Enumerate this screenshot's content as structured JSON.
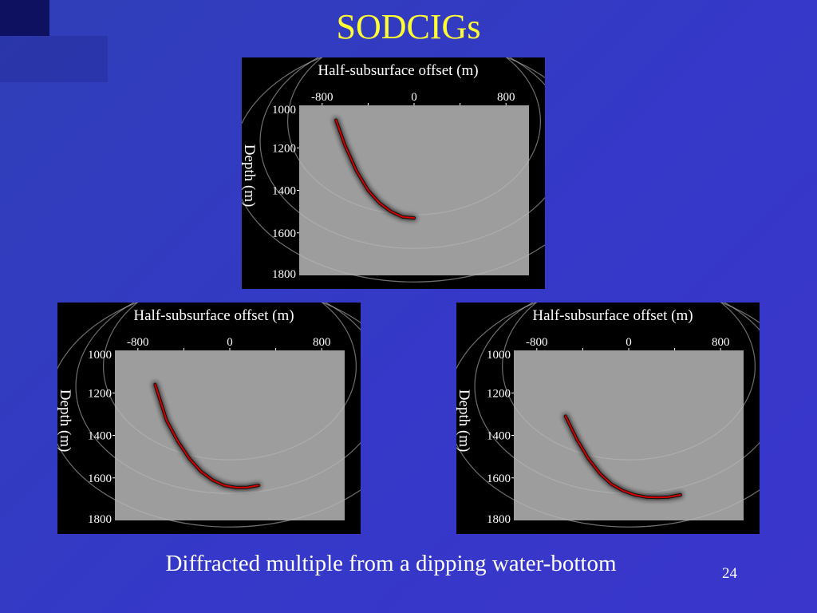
{
  "slide": {
    "title": "SODCIGs",
    "caption": "Diffracted multiple from a dipping water-bottom",
    "page_number": "24"
  },
  "colors": {
    "title": "#ffff33",
    "curve": "#d40000",
    "panel": "#000000"
  },
  "chart_data": [
    {
      "type": "line",
      "title": "",
      "xlabel": "Half-subsurface offset (m)",
      "ylabel": "Depth (m)",
      "x_ticks": [
        "-800",
        "0",
        "800"
      ],
      "y_ticks": [
        "1000",
        "1200",
        "1400",
        "1600",
        "1800"
      ],
      "xlim": [
        -1000,
        1000
      ],
      "ylim": [
        1000,
        1800
      ],
      "y_inverted": true,
      "series": [
        {
          "x": [
            -680,
            -600,
            -500,
            -400,
            -300,
            -200,
            -100,
            0
          ],
          "y": [
            1070,
            1190,
            1310,
            1400,
            1460,
            1500,
            1525,
            1530
          ]
        }
      ]
    },
    {
      "type": "line",
      "title": "",
      "xlabel": "Half-subsurface offset (m)",
      "ylabel": "Depth (m)",
      "x_ticks": [
        "-800",
        "0",
        "800"
      ],
      "y_ticks": [
        "1000",
        "1200",
        "1400",
        "1600",
        "1800"
      ],
      "xlim": [
        -1000,
        1000
      ],
      "ylim": [
        1000,
        1800
      ],
      "y_inverted": true,
      "series": [
        {
          "x": [
            -650,
            -550,
            -450,
            -350,
            -250,
            -150,
            -50,
            50,
            150,
            250
          ],
          "y": [
            1160,
            1330,
            1430,
            1510,
            1570,
            1610,
            1635,
            1645,
            1645,
            1635
          ]
        }
      ]
    },
    {
      "type": "line",
      "title": "",
      "xlabel": "Half-subsurface offset (m)",
      "ylabel": "Depth (m)",
      "x_ticks": [
        "-800",
        "0",
        "800"
      ],
      "y_ticks": [
        "1000",
        "1200",
        "1400",
        "1600",
        "1800"
      ],
      "xlim": [
        -1000,
        1000
      ],
      "ylim": [
        1000,
        1800
      ],
      "y_inverted": true,
      "series": [
        {
          "x": [
            -550,
            -450,
            -350,
            -250,
            -150,
            -50,
            50,
            150,
            250,
            350,
            450
          ],
          "y": [
            1310,
            1420,
            1510,
            1580,
            1630,
            1660,
            1680,
            1690,
            1692,
            1690,
            1680
          ]
        }
      ]
    }
  ]
}
